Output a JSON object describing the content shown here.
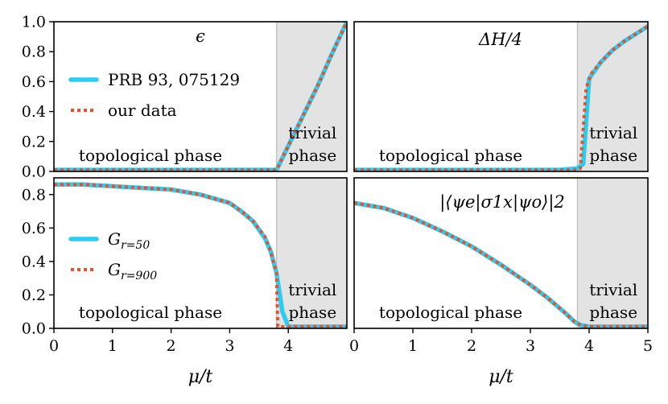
{
  "chart_data": [
    {
      "type": "line",
      "panel": "top-left",
      "annotation": "ϵ",
      "xlim": [
        0,
        5
      ],
      "ylim": [
        0,
        1
      ],
      "yticks": [
        "0.0",
        "0.2",
        "0.4",
        "0.6",
        "0.8",
        "1.0"
      ],
      "xticks": [],
      "phase_boundary": 3.8,
      "phase_labels": [
        "topological phase",
        "trivial",
        "phase"
      ],
      "legend": {
        "placement": "upper-left",
        "entries": [
          "PRB 93, 075129",
          "our data"
        ]
      },
      "series": [
        {
          "name": "PRB 93, 075129",
          "style": "solid",
          "x": [
            0,
            0.5,
            1,
            1.5,
            2,
            2.5,
            3,
            3.5,
            3.8,
            4.0,
            4.25,
            4.5,
            4.75,
            5.0
          ],
          "y": [
            0.01,
            0.01,
            0.01,
            0.01,
            0.01,
            0.01,
            0.01,
            0.01,
            0.01,
            0.17,
            0.37,
            0.57,
            0.79,
            1.0
          ]
        },
        {
          "name": "our data",
          "style": "dotted",
          "x": [
            0,
            0.5,
            1,
            1.5,
            2,
            2.5,
            3,
            3.5,
            3.8,
            4.0,
            4.25,
            4.5,
            4.75,
            5.0
          ],
          "y": [
            0.01,
            0.01,
            0.01,
            0.01,
            0.01,
            0.01,
            0.01,
            0.01,
            0.01,
            0.17,
            0.37,
            0.57,
            0.79,
            1.0
          ]
        }
      ]
    },
    {
      "type": "line",
      "panel": "top-right",
      "annotation": "ΔH/4",
      "xlim": [
        0,
        5
      ],
      "ylim": [
        0,
        1
      ],
      "yticks": [],
      "xticks": [],
      "phase_boundary": 3.8,
      "phase_labels": [
        "topological phase",
        "trivial",
        "phase"
      ],
      "series": [
        {
          "name": "PRB 93, 075129",
          "style": "solid",
          "x": [
            0,
            1,
            2,
            3,
            3.5,
            3.8,
            3.9,
            4.0,
            4.2,
            4.4,
            4.6,
            4.8,
            5.0
          ],
          "y": [
            0.01,
            0.01,
            0.01,
            0.01,
            0.01,
            0.02,
            0.05,
            0.62,
            0.73,
            0.81,
            0.87,
            0.92,
            0.97
          ]
        },
        {
          "name": "our data",
          "style": "dotted",
          "x": [
            0,
            1,
            2,
            3,
            3.5,
            3.8,
            3.85,
            3.95,
            4.05,
            4.2,
            4.4,
            4.6,
            4.8,
            5.0
          ],
          "y": [
            0.01,
            0.01,
            0.01,
            0.01,
            0.01,
            0.01,
            0.02,
            0.56,
            0.66,
            0.73,
            0.81,
            0.87,
            0.92,
            0.97
          ]
        }
      ]
    },
    {
      "type": "line",
      "panel": "bottom-left",
      "annotation": "",
      "xlim": [
        0,
        5
      ],
      "ylim": [
        0,
        0.9
      ],
      "yticks": [
        "0.0",
        "0.2",
        "0.4",
        "0.6",
        "0.8"
      ],
      "xticks": [
        "0",
        "1",
        "2",
        "3",
        "4"
      ],
      "xlabel": "μ/t",
      "phase_boundary": 3.8,
      "phase_labels": [
        "topological phase",
        "trivial",
        "phase"
      ],
      "legend": {
        "placement": "center-left",
        "entries": [
          "G",
          "G"
        ],
        "subscripts": [
          "r=50",
          "r=900"
        ]
      },
      "series": [
        {
          "name": "G_r=50",
          "style": "solid",
          "x": [
            0,
            0.5,
            1,
            1.5,
            2,
            2.5,
            3,
            3.2,
            3.4,
            3.6,
            3.7,
            3.8,
            3.9,
            4.0,
            4.5,
            5.0
          ],
          "y": [
            0.86,
            0.86,
            0.85,
            0.84,
            0.83,
            0.8,
            0.75,
            0.7,
            0.64,
            0.54,
            0.46,
            0.33,
            0.1,
            0.01,
            0.01,
            0.01
          ]
        },
        {
          "name": "G_r=900",
          "style": "dotted",
          "x": [
            0,
            0.5,
            1,
            1.5,
            2,
            2.5,
            3,
            3.2,
            3.4,
            3.6,
            3.7,
            3.8,
            3.82,
            4.0,
            4.5,
            5.0
          ],
          "y": [
            0.86,
            0.86,
            0.85,
            0.84,
            0.83,
            0.8,
            0.75,
            0.7,
            0.64,
            0.55,
            0.46,
            0.33,
            0.01,
            0.01,
            0.01,
            0.01
          ]
        }
      ]
    },
    {
      "type": "line",
      "panel": "bottom-right",
      "annotation": "|⟨ψe|σ1x|ψo⟩|2",
      "xlim": [
        0,
        5
      ],
      "ylim": [
        0,
        0.9
      ],
      "yticks": [],
      "xticks": [
        "0",
        "1",
        "2",
        "3",
        "4",
        "5"
      ],
      "xlabel": "μ/t",
      "phase_boundary": 3.8,
      "phase_labels": [
        "topological phase",
        "trivial",
        "phase"
      ],
      "series": [
        {
          "name": "G_r=50",
          "style": "solid",
          "x": [
            0,
            0.5,
            1,
            1.5,
            2,
            2.5,
            3,
            3.3,
            3.6,
            3.75,
            3.85,
            4.0,
            4.5,
            5.0
          ],
          "y": [
            0.75,
            0.72,
            0.66,
            0.58,
            0.49,
            0.38,
            0.26,
            0.18,
            0.09,
            0.04,
            0.02,
            0.01,
            0.01,
            0.01
          ]
        },
        {
          "name": "G_r=900",
          "style": "dotted",
          "x": [
            0,
            0.5,
            1,
            1.5,
            2,
            2.5,
            3,
            3.3,
            3.6,
            3.75,
            3.85,
            4.0,
            4.5,
            5.0
          ],
          "y": [
            0.75,
            0.72,
            0.66,
            0.58,
            0.49,
            0.38,
            0.26,
            0.18,
            0.09,
            0.04,
            0.02,
            0.01,
            0.01,
            0.01
          ]
        }
      ]
    }
  ],
  "colors": {
    "solid": "#2ccdf5",
    "dotted": "#e8512a",
    "shade": "#e3e3e3"
  }
}
